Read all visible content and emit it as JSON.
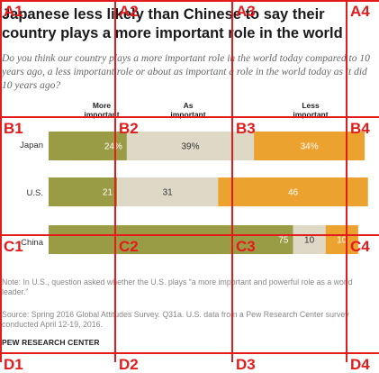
{
  "title": "Japanese less likely than Chinese to say their country plays a more important role in the world",
  "subtitle": "Do you think our country plays a more important role in the world today compared to 10 years ago, a less important role or about as important a role in the world today as it did 10 years ago?",
  "notes": {
    "note": "Note: In U.S., question asked whether the U.S. plays “a more important and powerful role as a world leader.”",
    "source": "Source: Spring 2016 Global Attitudes Survey. Q31a. U.S. data from a Pew Research Center survey conducted April 12-19, 2016.",
    "brand": "PEW RESEARCH CENTER"
  },
  "colors": {
    "more": "#9a9b45",
    "as": "#ddd9c6",
    "less": "#eba22e",
    "grid": "#e31b1b"
  },
  "chart_data": {
    "type": "bar",
    "stacked": true,
    "orientation": "horizontal",
    "categories": [
      "Japan",
      "U.S.",
      "China"
    ],
    "series": [
      {
        "name": "More important",
        "values": [
          24,
          21,
          75
        ],
        "labels": [
          "24%",
          "21",
          "75"
        ]
      },
      {
        "name": "As important",
        "values": [
          39,
          31,
          10
        ],
        "labels": [
          "39%",
          "31",
          "10"
        ]
      },
      {
        "name": "Less important",
        "values": [
          34,
          46,
          10
        ],
        "labels": [
          "34%",
          "46",
          "10"
        ]
      }
    ],
    "title": "Japanese less likely than Chinese to say their country plays a more important role in the world",
    "legend": "column headers above bars"
  },
  "overlay_grid": {
    "labels": [
      "A1",
      "A2",
      "A3",
      "A4",
      "B1",
      "B2",
      "B3",
      "B4",
      "C1",
      "C2",
      "C3",
      "C4",
      "D1",
      "D2",
      "D3",
      "D4"
    ]
  }
}
